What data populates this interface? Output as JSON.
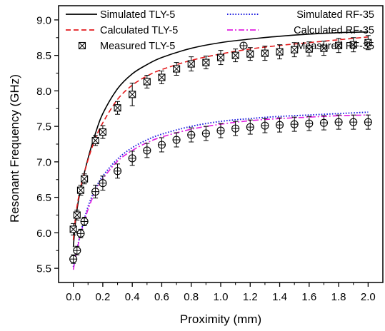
{
  "chart_data": {
    "type": "line",
    "xlabel": "Proximity (mm)",
    "ylabel": "Resonant Frequency (GHz)",
    "xlim": [
      -0.1,
      2.1
    ],
    "ylim": [
      5.3,
      9.2
    ],
    "xticks": [
      "0.0",
      "0.2",
      "0.4",
      "0.6",
      "0.8",
      "1.0",
      "1.2",
      "1.4",
      "1.6",
      "1.8",
      "2.0"
    ],
    "yticks": [
      "5.5",
      "6.0",
      "6.5",
      "7.0",
      "7.5",
      "8.0",
      "8.5",
      "9.0"
    ],
    "grid": false,
    "legend_position": "top",
    "series": [
      {
        "name": "Simulated TLY-5",
        "style": "solid",
        "color": "#000000",
        "x": [
          0.0,
          0.02,
          0.05,
          0.1,
          0.15,
          0.2,
          0.3,
          0.4,
          0.5,
          0.6,
          0.8,
          1.0,
          1.2,
          1.4,
          1.6,
          1.8,
          2.0
        ],
        "y": [
          5.8,
          6.25,
          6.62,
          7.05,
          7.4,
          7.68,
          8.03,
          8.24,
          8.37,
          8.47,
          8.6,
          8.68,
          8.73,
          8.77,
          8.8,
          8.82,
          8.83
        ]
      },
      {
        "name": "Calculated TLY-5",
        "style": "dashed",
        "color": "#e31a1c",
        "x": [
          0.0,
          0.02,
          0.05,
          0.1,
          0.15,
          0.2,
          0.3,
          0.4,
          0.5,
          0.6,
          0.8,
          1.0,
          1.2,
          1.4,
          1.6,
          1.8,
          2.0
        ],
        "y": [
          5.9,
          6.3,
          6.64,
          7.03,
          7.33,
          7.55,
          7.88,
          8.08,
          8.21,
          8.3,
          8.43,
          8.52,
          8.59,
          8.64,
          8.68,
          8.72,
          8.76
        ]
      },
      {
        "name": "Measured TLY-5",
        "style": "marker-boxx",
        "color": "#000000",
        "x": [
          0.0,
          0.025,
          0.05,
          0.075,
          0.15,
          0.2,
          0.3,
          0.4,
          0.5,
          0.6,
          0.7,
          0.8,
          0.9,
          1.0,
          1.1,
          1.2,
          1.3,
          1.4,
          1.5,
          1.6,
          1.7,
          1.8,
          1.9,
          2.0
        ],
        "y": [
          6.05,
          6.25,
          6.6,
          6.76,
          7.3,
          7.42,
          7.76,
          7.95,
          8.13,
          8.19,
          8.31,
          8.38,
          8.4,
          8.47,
          8.5,
          8.52,
          8.53,
          8.55,
          8.58,
          8.59,
          8.6,
          8.64,
          8.65,
          8.68
        ],
        "err": [
          0.08,
          0.07,
          0.07,
          0.07,
          0.07,
          0.09,
          0.09,
          0.16,
          0.09,
          0.09,
          0.09,
          0.1,
          0.09,
          0.1,
          0.09,
          0.09,
          0.1,
          0.1,
          0.1,
          0.1,
          0.1,
          0.1,
          0.1,
          0.1
        ]
      },
      {
        "name": "Simulated RF-35",
        "style": "dotted",
        "color": "#1f1fe0",
        "x": [
          0.0,
          0.02,
          0.05,
          0.1,
          0.15,
          0.2,
          0.3,
          0.4,
          0.5,
          0.6,
          0.8,
          1.0,
          1.2,
          1.4,
          1.6,
          1.8,
          2.0
        ],
        "y": [
          5.52,
          5.72,
          6.0,
          6.37,
          6.62,
          6.8,
          7.04,
          7.2,
          7.31,
          7.39,
          7.5,
          7.57,
          7.61,
          7.64,
          7.66,
          7.68,
          7.7
        ]
      },
      {
        "name": "Calculated RF-35",
        "style": "dashdot",
        "color": "#e01ee0",
        "x": [
          0.0,
          0.02,
          0.05,
          0.1,
          0.15,
          0.2,
          0.3,
          0.4,
          0.5,
          0.6,
          0.8,
          1.0,
          1.2,
          1.4,
          1.6,
          1.8,
          2.0
        ],
        "y": [
          5.48,
          5.7,
          5.98,
          6.33,
          6.58,
          6.76,
          7.01,
          7.16,
          7.27,
          7.35,
          7.46,
          7.53,
          7.58,
          7.61,
          7.63,
          7.65,
          7.66
        ]
      },
      {
        "name": "Measured RF-35",
        "style": "marker-circleplus",
        "color": "#000000",
        "x": [
          0.0,
          0.025,
          0.05,
          0.075,
          0.15,
          0.2,
          0.3,
          0.4,
          0.5,
          0.6,
          0.7,
          0.8,
          0.9,
          1.0,
          1.1,
          1.2,
          1.3,
          1.4,
          1.5,
          1.6,
          1.7,
          1.8,
          1.9,
          2.0
        ],
        "y": [
          5.63,
          5.75,
          5.99,
          6.16,
          6.58,
          6.7,
          6.87,
          7.05,
          7.16,
          7.24,
          7.31,
          7.38,
          7.4,
          7.44,
          7.47,
          7.49,
          7.51,
          7.52,
          7.53,
          7.54,
          7.55,
          7.56,
          7.56,
          7.56
        ],
        "err": [
          0.06,
          0.06,
          0.06,
          0.06,
          0.09,
          0.1,
          0.1,
          0.1,
          0.1,
          0.1,
          0.1,
          0.1,
          0.1,
          0.1,
          0.1,
          0.1,
          0.1,
          0.1,
          0.1,
          0.1,
          0.1,
          0.1,
          0.1,
          0.1
        ]
      }
    ]
  }
}
